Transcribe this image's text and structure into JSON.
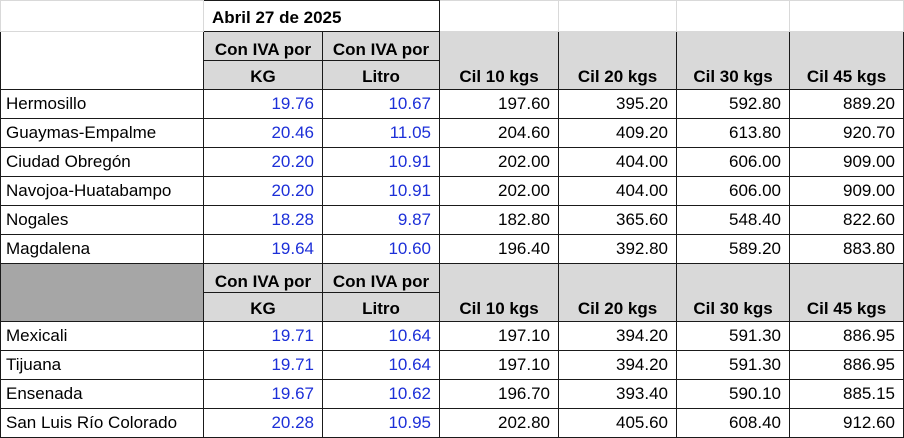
{
  "title": "Abril 27 de 2025",
  "headers": {
    "kg_line1": "Con IVA por",
    "kg_line2": "KG",
    "litro_line1": "Con IVA por",
    "litro_line2": "Litro",
    "cil10": "Cil 10 kgs",
    "cil20": "Cil 20 kgs",
    "cil30": "Cil 30 kgs",
    "cil45": "Cil 45 kgs"
  },
  "group1": [
    {
      "city": "Hermosillo",
      "kg": "19.76",
      "litro": "10.67",
      "c10": "197.60",
      "c20": "395.20",
      "c30": "592.80",
      "c45": "889.20"
    },
    {
      "city": "Guaymas-Empalme",
      "kg": "20.46",
      "litro": "11.05",
      "c10": "204.60",
      "c20": "409.20",
      "c30": "613.80",
      "c45": "920.70"
    },
    {
      "city": "Ciudad Obregón",
      "kg": "20.20",
      "litro": "10.91",
      "c10": "202.00",
      "c20": "404.00",
      "c30": "606.00",
      "c45": "909.00"
    },
    {
      "city": "Navojoa-Huatabampo",
      "kg": "20.20",
      "litro": "10.91",
      "c10": "202.00",
      "c20": "404.00",
      "c30": "606.00",
      "c45": "909.00"
    },
    {
      "city": "Nogales",
      "kg": "18.28",
      "litro": "9.87",
      "c10": "182.80",
      "c20": "365.60",
      "c30": "548.40",
      "c45": "822.60"
    },
    {
      "city": "Magdalena",
      "kg": "19.64",
      "litro": "10.60",
      "c10": "196.40",
      "c20": "392.80",
      "c30": "589.20",
      "c45": "883.80"
    }
  ],
  "group2": [
    {
      "city": "Mexicali",
      "kg": "19.71",
      "litro": "10.64",
      "c10": "197.10",
      "c20": "394.20",
      "c30": "591.30",
      "c45": "886.95"
    },
    {
      "city": "Tijuana",
      "kg": "19.71",
      "litro": "10.64",
      "c10": "197.10",
      "c20": "394.20",
      "c30": "591.30",
      "c45": "886.95"
    },
    {
      "city": "Ensenada",
      "kg": "19.67",
      "litro": "10.62",
      "c10": "196.70",
      "c20": "393.40",
      "c30": "590.10",
      "c45": "885.15"
    },
    {
      "city": "San Luis Río Colorado",
      "kg": "20.28",
      "litro": "10.95",
      "c10": "202.80",
      "c20": "405.60",
      "c30": "608.40",
      "c45": "912.60"
    }
  ],
  "colors": {
    "value_blue": "#1c2fd8",
    "header_fill": "#d9d9d9",
    "dark_fill": "#a6a6a6"
  }
}
